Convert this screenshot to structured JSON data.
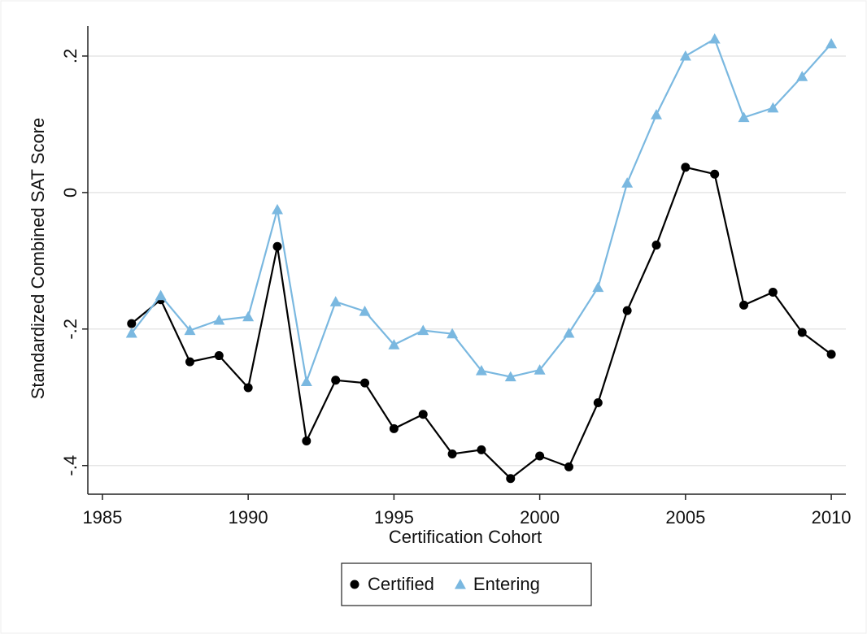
{
  "chart_data": {
    "type": "line",
    "x_label": "Certification Cohort",
    "y_label": "Standardized Combined SAT Score",
    "x": [
      1986,
      1987,
      1988,
      1989,
      1990,
      1991,
      1992,
      1993,
      1994,
      1995,
      1996,
      1997,
      1998,
      1999,
      2000,
      2001,
      2002,
      2003,
      2004,
      2005,
      2006,
      2007,
      2008,
      2009,
      2010
    ],
    "series": [
      {
        "name": "Certified",
        "color": "#000000",
        "marker": "circle",
        "values": [
          -0.192,
          -0.157,
          -0.248,
          -0.239,
          -0.286,
          -0.079,
          -0.364,
          -0.275,
          -0.279,
          -0.346,
          -0.325,
          -0.383,
          -0.377,
          -0.419,
          -0.386,
          -0.402,
          -0.308,
          -0.173,
          -0.077,
          0.037,
          0.027,
          -0.165,
          -0.146,
          -0.205,
          -0.237
        ]
      },
      {
        "name": "Entering",
        "color": "#7ab8e0",
        "marker": "triangle",
        "values": [
          -0.206,
          -0.151,
          -0.202,
          -0.187,
          -0.182,
          -0.025,
          -0.277,
          -0.16,
          -0.174,
          -0.223,
          -0.202,
          -0.207,
          -0.261,
          -0.27,
          -0.26,
          -0.206,
          -0.139,
          0.014,
          0.114,
          0.2,
          0.225,
          0.11,
          0.124,
          0.17,
          0.218
        ]
      }
    ],
    "xlim": [
      1984.5,
      2010.5
    ],
    "xticks": [
      1985,
      1990,
      1995,
      2000,
      2005,
      2010
    ],
    "ylim": [
      -0.442,
      0.244
    ],
    "yticks": [
      {
        "value": -0.4,
        "label": "-.4"
      },
      {
        "value": -0.2,
        "label": "-.2"
      },
      0,
      {
        "value": 0.2,
        "label": ".2"
      }
    ],
    "grid": true,
    "legend": "bottom"
  }
}
